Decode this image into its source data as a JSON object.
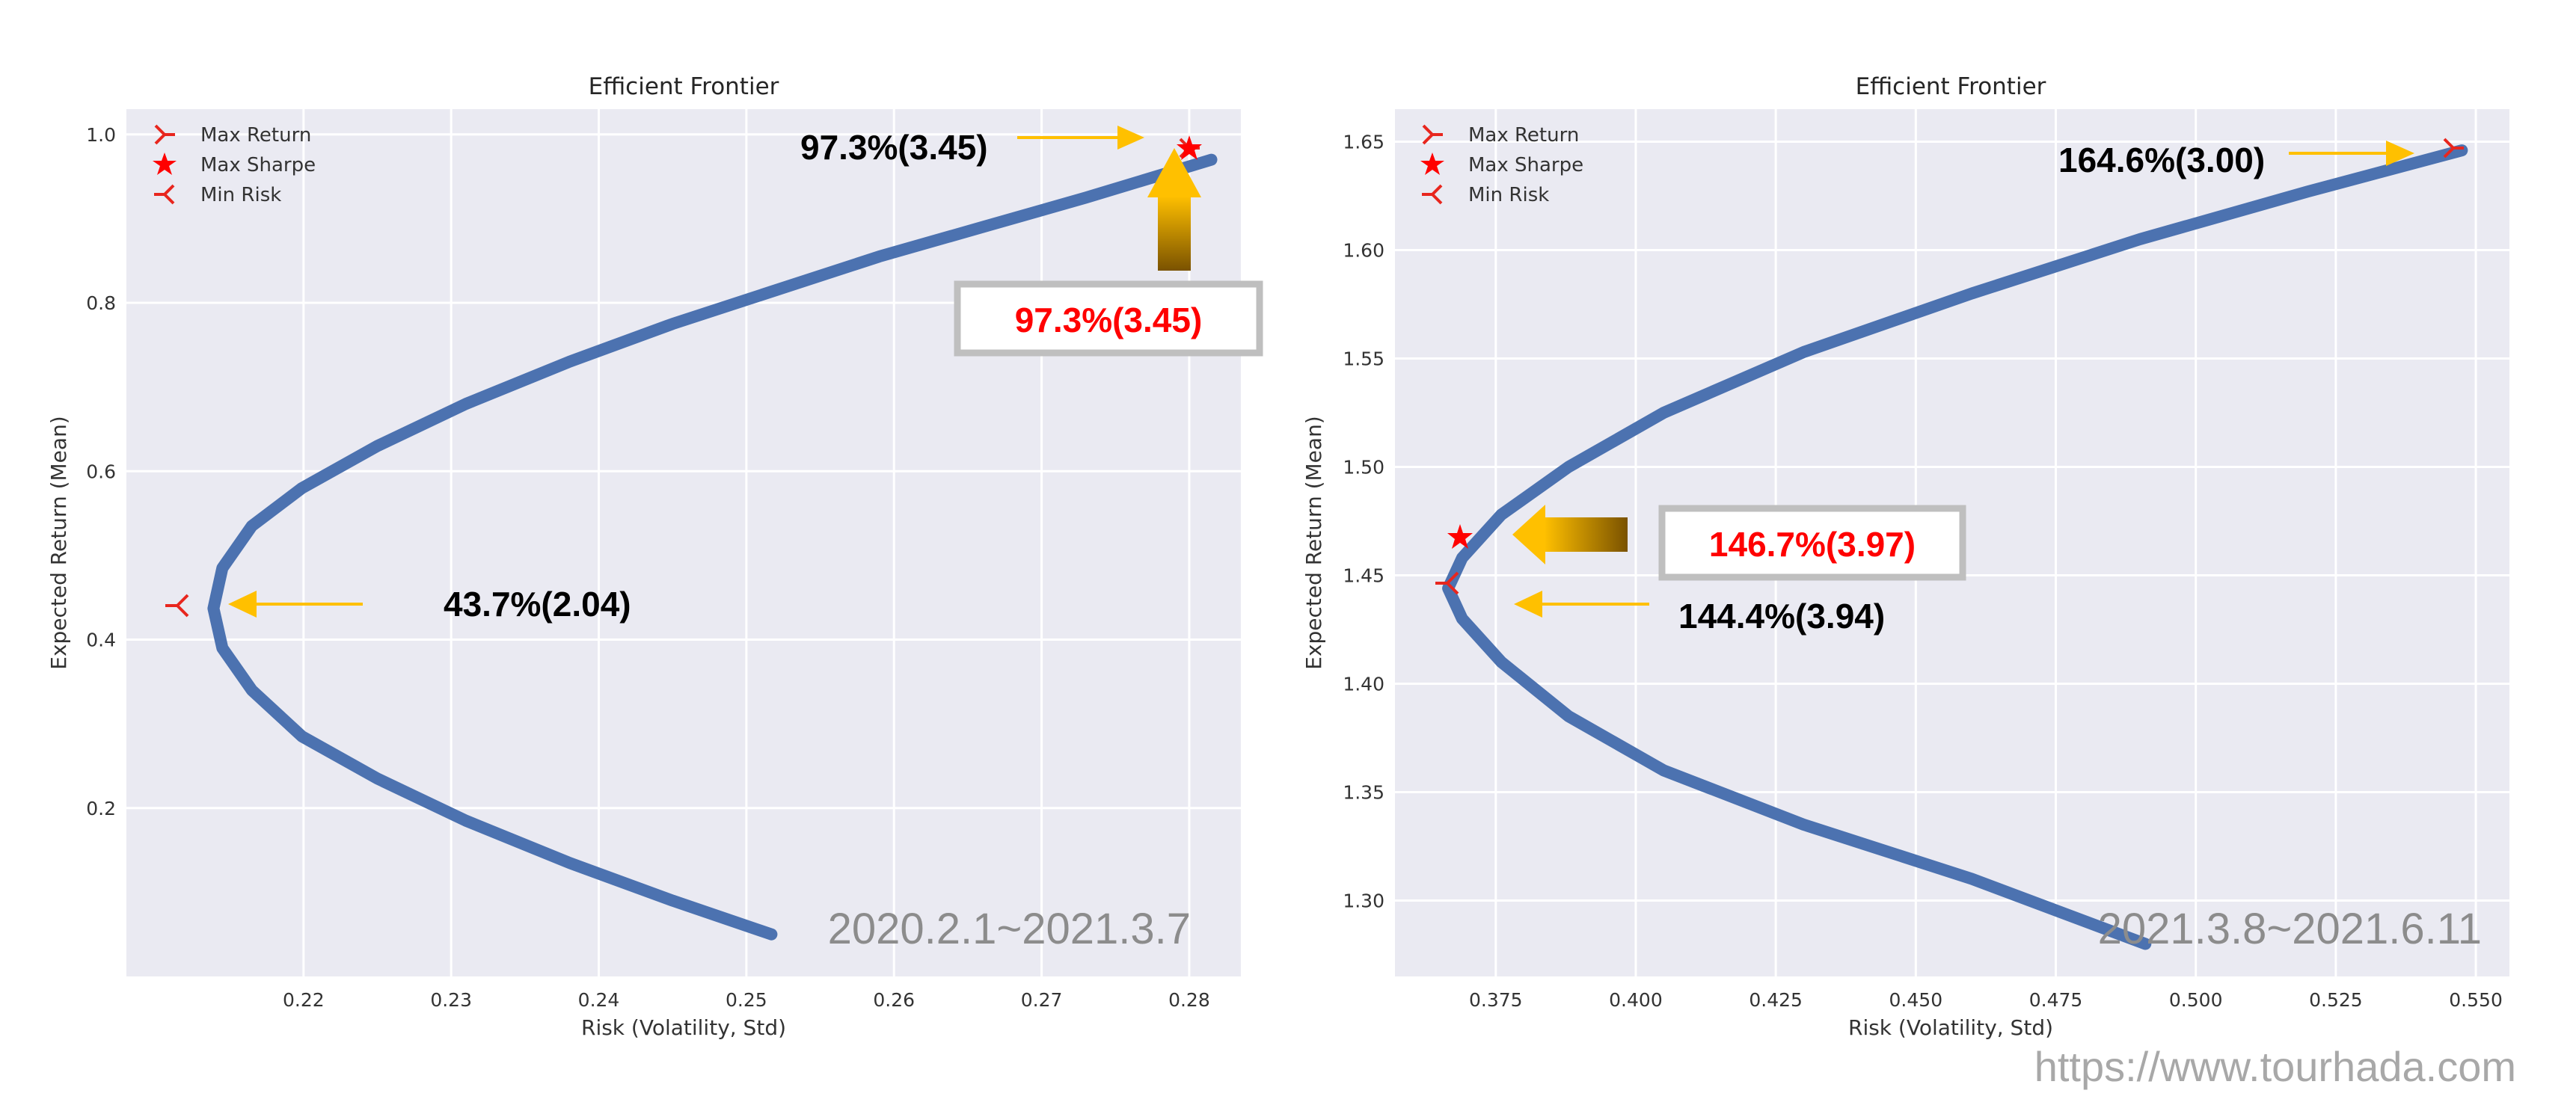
{
  "url": "https://www.tourhada.com",
  "chart_data": [
    {
      "type": "scatter",
      "title": "Efficient Frontier",
      "xlabel": "Risk (Volatility, Std)",
      "ylabel": "Expected Return (Mean)",
      "xlim": [
        0.208,
        0.2835
      ],
      "ylim": [
        0.0,
        1.03
      ],
      "xticks": [
        0.22,
        0.23,
        0.24,
        0.25,
        0.26,
        0.27,
        0.28
      ],
      "xtick_labels": [
        "0.22",
        "0.23",
        "0.24",
        "0.25",
        "0.26",
        "0.27",
        "0.28"
      ],
      "yticks": [
        0.2,
        0.4,
        0.6,
        0.8,
        1.0
      ],
      "ytick_labels": [
        "0.2",
        "0.4",
        "0.6",
        "0.8",
        "1.0"
      ],
      "grid": true,
      "legend": "top-left",
      "legend_entries": [
        "Max Return",
        "Max Sharpe",
        "Min Risk"
      ],
      "series": [
        {
          "x": [
            0.2517,
            0.245,
            0.238,
            0.231,
            0.225,
            0.2199,
            0.2165,
            0.2145,
            0.2139,
            0.2145,
            0.2165,
            0.2199,
            0.225,
            0.231,
            0.238,
            0.245,
            0.252,
            0.259,
            0.266,
            0.273,
            0.2815
          ],
          "y": [
            0.05,
            0.09,
            0.135,
            0.185,
            0.235,
            0.285,
            0.34,
            0.39,
            0.437,
            0.485,
            0.535,
            0.58,
            0.63,
            0.68,
            0.73,
            0.775,
            0.815,
            0.855,
            0.89,
            0.925,
            0.97
          ]
        }
      ],
      "markers": [
        {
          "label": "Max Return",
          "x": 0.2819,
          "y": 0.973
        },
        {
          "label": "Max Sharpe",
          "x": 0.2819,
          "y": 0.973
        },
        {
          "label": "Min Risk",
          "x": 0.2139,
          "y": 0.437
        }
      ],
      "annotations": [
        {
          "text": "97.3%(3.45)",
          "color": "#000000"
        },
        {
          "text": "97.3%(3.45)",
          "color": "#ff0000",
          "boxed": true
        },
        {
          "text": "43.7%(2.04)",
          "color": "#000000"
        }
      ],
      "period_text": "2020.2.1~2021.3.7"
    },
    {
      "type": "scatter",
      "title": "Efficient Frontier",
      "xlabel": "Risk (Volatility, Std)",
      "ylabel": "Expected Return (Mean)",
      "xlim": [
        0.357,
        0.556
      ],
      "ylim": [
        1.265,
        1.665
      ],
      "xticks": [
        0.375,
        0.4,
        0.425,
        0.45,
        0.475,
        0.5,
        0.525,
        0.55
      ],
      "xtick_labels": [
        "0.375",
        "0.400",
        "0.425",
        "0.450",
        "0.475",
        "0.500",
        "0.525",
        "0.550"
      ],
      "yticks": [
        1.3,
        1.35,
        1.4,
        1.45,
        1.5,
        1.55,
        1.6,
        1.65
      ],
      "ytick_labels": [
        "1.30",
        "1.35",
        "1.40",
        "1.45",
        "1.50",
        "1.55",
        "1.60",
        "1.65"
      ],
      "grid": true,
      "legend": "top-left",
      "legend_entries": [
        "Max Return",
        "Max Sharpe",
        "Min Risk"
      ],
      "series": [
        {
          "x": [
            0.491,
            0.46,
            0.43,
            0.405,
            0.388,
            0.376,
            0.369,
            0.3665,
            0.369,
            0.376,
            0.388,
            0.405,
            0.43,
            0.46,
            0.49,
            0.52,
            0.5475
          ],
          "y": [
            1.28,
            1.31,
            1.335,
            1.36,
            1.385,
            1.41,
            1.43,
            1.444,
            1.458,
            1.478,
            1.5,
            1.525,
            1.553,
            1.58,
            1.605,
            1.627,
            1.646
          ]
        }
      ],
      "markers": [
        {
          "label": "Max Return",
          "x": 0.5475,
          "y": 1.646
        },
        {
          "label": "Max Sharpe",
          "x": 0.3695,
          "y": 1.467
        },
        {
          "label": "Min Risk",
          "x": 0.3665,
          "y": 1.444
        }
      ],
      "annotations": [
        {
          "text": "164.6%(3.00)",
          "color": "#000000"
        },
        {
          "text": "146.7%(3.97)",
          "color": "#ff0000",
          "boxed": true
        },
        {
          "text": "144.4%(3.94)",
          "color": "#000000"
        }
      ],
      "period_text": "2021.3.8~2021.6.11"
    }
  ]
}
